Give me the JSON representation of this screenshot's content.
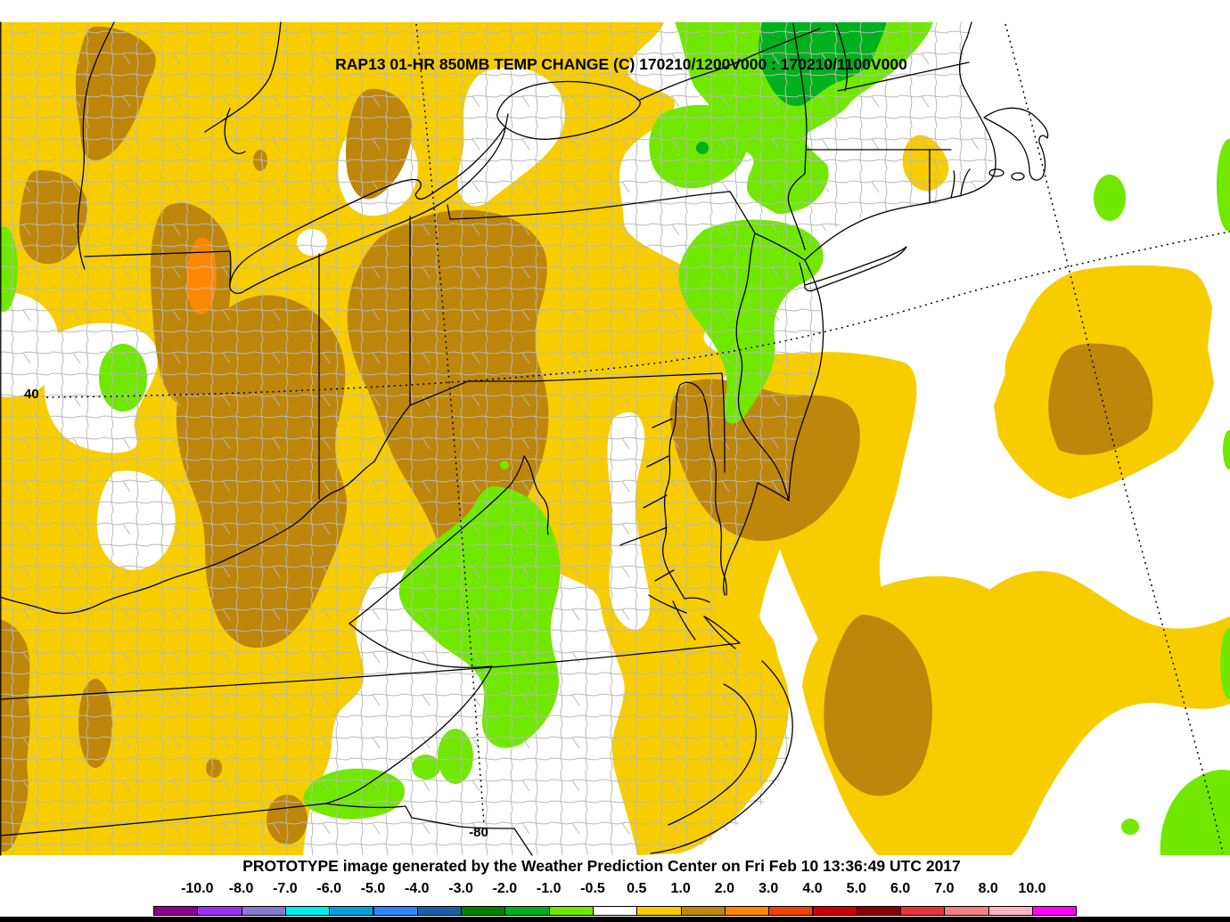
{
  "title": "RAP13 01-HR 850MB TEMP CHANGE (C) 170210/1200V000 : 170210/1100V000",
  "footer": "PROTOTYPE image generated by the Weather Prediction Center on Fri Feb 10 13:36:49 UTC 2017",
  "map": {
    "graticule_labels": [
      {
        "text": "40"
      },
      {
        "text": "-80"
      }
    ],
    "fill_colors": {
      "background_white": "#FFFFFF",
      "county_lines": "#B9B9B9",
      "state_lines": "#000000",
      "yellow_0p5_to_1": "#F7CD00",
      "brown_1_to_2": "#BE860B",
      "orange_2_to_3": "#FF8800",
      "light_green_m1_to_m0p5": "#70E800",
      "green_m2_to_m1": "#00B01E"
    }
  },
  "legend": {
    "tick_labels": [
      "-10.0",
      "-8.0",
      "-7.0",
      "-6.0",
      "-5.0",
      "-4.0",
      "-3.0",
      "-2.0",
      "-1.0",
      "-0.5",
      "0.5",
      "1.0",
      "2.0",
      "3.0",
      "4.0",
      "5.0",
      "6.0",
      "7.0",
      "8.0",
      "10.0"
    ],
    "box_colors": [
      "#8B008B",
      "#9932EE",
      "#8877CC",
      "#00EEEE",
      "#00A0DD",
      "#2E86FF",
      "#1C5FA8",
      "#008000",
      "#00B01E",
      "#70E800",
      "#FFFFFF",
      "#F7CD00",
      "#BE860B",
      "#FF8800",
      "#EE4400",
      "#CC0000",
      "#880000",
      "#E83434",
      "#F28080",
      "#FFB4C4",
      "#FF00FF"
    ]
  }
}
